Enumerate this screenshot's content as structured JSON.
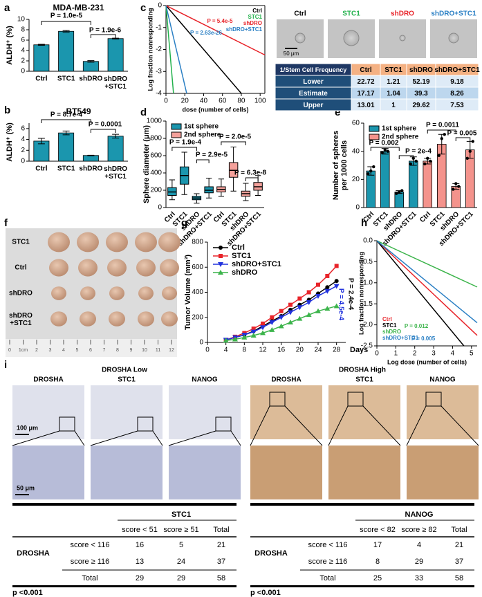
{
  "panel_labels": [
    "a",
    "b",
    "c",
    "d",
    "e",
    "f",
    "g",
    "h",
    "i"
  ],
  "chart_data": [
    {
      "type": "bar",
      "title": "MDA-MB-231",
      "ylabel": "ALDH⁺ (%)",
      "categories": [
        "Ctrl",
        "STC1",
        "shDRO",
        "shDRO\n+STC1"
      ],
      "values": [
        5.1,
        7.7,
        1.9,
        6.3
      ],
      "errors": [
        0.1,
        0.15,
        0.15,
        0.08
      ],
      "color": "#1b96ae",
      "ylim": [
        0,
        10
      ],
      "yticks": [
        0,
        2,
        4,
        6,
        8,
        10
      ],
      "annotations": [
        {
          "text": "P = 1.0e-5",
          "color": "#000000"
        },
        {
          "text": "P = 1.9e-6",
          "color": "#000000"
        }
      ]
    },
    {
      "type": "bar",
      "title": "BT549",
      "ylabel": "ALDH⁺ (%)",
      "categories": [
        "Ctrl",
        "STC1",
        "shDRO",
        "shDRO\n+STC1"
      ],
      "values": [
        3.7,
        5.2,
        1.05,
        4.6
      ],
      "errors": [
        0.5,
        0.35,
        0.05,
        0.35
      ],
      "color": "#1b96ae",
      "ylim": [
        0,
        7
      ],
      "yticks": [
        0,
        2,
        4,
        6
      ],
      "annotations": [
        {
          "text": "P = 8.7e-4",
          "color": "#000000"
        },
        {
          "text": "P = 0.0001",
          "color": "#000000"
        }
      ]
    },
    {
      "type": "line",
      "ylabel": "Log fraction nonresponding",
      "xlabel": "dose (number of cells)",
      "frame": true,
      "xlim": [
        0,
        105
      ],
      "xticks": [
        0,
        20,
        40,
        60,
        80,
        100
      ],
      "ylim": [
        -4,
        0
      ],
      "yticks": [
        0,
        -1,
        -2,
        -3,
        -4
      ],
      "legend": "upper right",
      "series": [
        {
          "name": "Ctrl",
          "color": "#000000",
          "x": [
            0,
            80
          ],
          "values": [
            0,
            -4
          ]
        },
        {
          "name": "STC1",
          "color": "#22b14c",
          "x": [
            0,
            8
          ],
          "values": [
            0,
            -4
          ]
        },
        {
          "name": "shDRO",
          "color": "#e8242a",
          "x": [
            0,
            105
          ],
          "values": [
            0,
            -2.25
          ]
        },
        {
          "name": "shDRO+STC1",
          "color": "#2a7fc4",
          "x": [
            0,
            22
          ],
          "values": [
            0,
            -4
          ]
        }
      ],
      "annotations": [
        {
          "text": "P = 5.4e-5",
          "color": "#e8242a"
        },
        {
          "text": "P = 2.63e-26",
          "color": "#2a7fc4"
        }
      ]
    },
    {
      "type": "box",
      "ylabel": "Sphere diameter (μm)",
      "categories": [
        "Ctrl",
        "STC1",
        "shDRO",
        "shDRO+STC1",
        "Ctrl",
        "STC1",
        "shDRO",
        "shDRO+STC1"
      ],
      "x_label_rotation": 45,
      "ylim": [
        0,
        1000
      ],
      "yticks": [
        0,
        200,
        400,
        600,
        800,
        1000
      ],
      "legend": "upper left",
      "series": [
        {
          "name": "1st sphere",
          "color": "#1b96ae",
          "min": [
            90,
            150,
            50,
            110,
            null,
            null,
            null,
            null
          ],
          "q1": [
            140,
            270,
            90,
            170,
            null,
            null,
            null,
            null
          ],
          "median": [
            180,
            370,
            110,
            200,
            null,
            null,
            null,
            null
          ],
          "q3": [
            230,
            470,
            130,
            240,
            null,
            null,
            null,
            null
          ],
          "max": [
            320,
            640,
            160,
            340,
            null,
            null,
            null,
            null
          ]
        },
        {
          "name": "2nd sphere",
          "color": "#f4a09a",
          "min": [
            null,
            null,
            null,
            null,
            130,
            190,
            80,
            140
          ],
          "q1": [
            null,
            null,
            null,
            null,
            180,
            350,
            130,
            200
          ],
          "median": [
            null,
            null,
            null,
            null,
            210,
            430,
            160,
            240
          ],
          "q3": [
            null,
            null,
            null,
            null,
            240,
            520,
            190,
            290
          ],
          "max": [
            null,
            null,
            null,
            null,
            330,
            700,
            280,
            370
          ]
        }
      ],
      "annotations": [
        {
          "text": "P = 1.9e-4",
          "color": "#000000"
        },
        {
          "text": "P = 2.9e-5",
          "color": "#000000"
        },
        {
          "text": "P = 2.0e-5",
          "color": "#000000"
        },
        {
          "text": "P = 6.3e-8",
          "color": "#000000"
        }
      ]
    },
    {
      "type": "bar",
      "ylabel": [
        "Number of spheres",
        "per 1000 cells"
      ],
      "categories": [
        "Ctrl",
        "STC1",
        "shDRO",
        "shDRO+STC1",
        "Ctrl",
        "STC1",
        "shDRO",
        "shDRO+STC1"
      ],
      "x_label_rotation": 45,
      "ylim": [
        0,
        60
      ],
      "yticks": [
        0,
        20,
        40,
        60
      ],
      "legend": "upper left",
      "series": [
        {
          "name": "1st sphere",
          "color": "#1b96ae",
          "values": [
            26,
            40,
            11,
            33,
            null,
            null,
            null,
            null
          ],
          "errors": [
            3,
            2,
            1,
            3,
            null,
            null,
            null,
            null
          ],
          "points": [
            [
              24,
              26,
              29
            ],
            [
              39,
              41,
              40
            ],
            [
              10,
              11,
              12
            ],
            [
              31,
              35,
              33
            ],
            null,
            null,
            null,
            null
          ]
        },
        {
          "name": "2nd sphere",
          "color": "#f4938c",
          "values": [
            null,
            null,
            null,
            null,
            33,
            45,
            15,
            41
          ],
          "errors": [
            null,
            null,
            null,
            null,
            2,
            7,
            2,
            6
          ],
          "points": [
            null,
            null,
            null,
            null,
            [
              31,
              35,
              33
            ],
            [
              37,
              49,
              52
            ],
            [
              13,
              17,
              15
            ],
            [
              35,
              40,
              47
            ]
          ]
        }
      ],
      "annotations": [
        {
          "text": "P = 0.002",
          "color": "#000000"
        },
        {
          "text": "P = 2e-4",
          "color": "#000000"
        },
        {
          "text": "P = 0.0011",
          "color": "#000000"
        },
        {
          "text": "P = 0.005",
          "color": "#000000"
        }
      ]
    },
    {
      "type": "line",
      "ylabel": "Tumor Volume (mm³)",
      "xlabel": "Days",
      "markers": true,
      "xlim": [
        0,
        30
      ],
      "xticks": [
        0,
        4,
        8,
        12,
        16,
        20,
        24,
        28
      ],
      "ylim": [
        0,
        800
      ],
      "yticks": [
        0,
        200,
        400,
        600,
        800
      ],
      "legend": "upper left",
      "series": [
        {
          "name": "Ctrl",
          "color": "#000000",
          "marker": "circle",
          "x": [
            4,
            6,
            8,
            10,
            12,
            14,
            16,
            18,
            20,
            22,
            24,
            26,
            28
          ],
          "values": [
            20,
            40,
            60,
            90,
            130,
            170,
            210,
            260,
            300,
            340,
            390,
            440,
            490
          ]
        },
        {
          "name": "STC1",
          "color": "#e8242a",
          "marker": "square",
          "x": [
            4,
            6,
            8,
            10,
            12,
            14,
            16,
            18,
            20,
            22,
            24,
            26,
            28
          ],
          "values": [
            20,
            45,
            75,
            110,
            150,
            200,
            250,
            300,
            350,
            400,
            460,
            530,
            610
          ]
        },
        {
          "name": "shDRO+STC1",
          "color": "#2233dd",
          "marker": "triangle-down",
          "x": [
            4,
            6,
            8,
            10,
            12,
            14,
            16,
            18,
            20,
            22,
            24,
            26,
            28
          ],
          "values": [
            20,
            40,
            60,
            85,
            120,
            160,
            200,
            240,
            280,
            320,
            370,
            410,
            450
          ]
        },
        {
          "name": "shDRO",
          "color": "#3cb44b",
          "marker": "triangle-up",
          "x": [
            4,
            6,
            8,
            10,
            12,
            14,
            16,
            18,
            20,
            22,
            24,
            26,
            28
          ],
          "values": [
            15,
            25,
            40,
            55,
            75,
            100,
            130,
            160,
            190,
            220,
            250,
            270,
            290
          ]
        }
      ],
      "annotations": [
        {
          "text": "P = 2.4e-4",
          "color": "#000000"
        },
        {
          "text": "P = 4.5e-4",
          "color": "#2233dd"
        }
      ]
    },
    {
      "type": "line",
      "ylabel": "Log fraction nonresponding",
      "xlabel": "Log dose (number of cells)",
      "xlim": [
        0,
        5.3
      ],
      "xticks": [
        0,
        1,
        2,
        3,
        4,
        5
      ],
      "ylim": [
        -2.5,
        0
      ],
      "yticks": [
        {
          "value": 0,
          "label": "0.0"
        },
        -0.5,
        {
          "value": -1,
          "label": "-1.0"
        },
        -1.5,
        {
          "value": -2,
          "label": "-2.0"
        },
        -2.5
      ],
      "legend": "lower left",
      "series": [
        {
          "name": "Ctrl",
          "color": "#e8242a",
          "x": [
            0,
            5.3
          ],
          "values": [
            0,
            -2.25
          ]
        },
        {
          "name": "STC1",
          "color": "#000000",
          "x": [
            0,
            4.6
          ],
          "values": [
            0,
            -2.5
          ]
        },
        {
          "name": "shDRO",
          "color": "#3cb44b",
          "x": [
            0,
            5.3
          ],
          "values": [
            0,
            -1.1
          ]
        },
        {
          "name": "shDRO+STC1",
          "color": "#2a7fc4",
          "x": [
            0,
            5.3
          ],
          "values": [
            0,
            -1.95
          ]
        }
      ],
      "annotations": [
        {
          "text": "P = 0.012",
          "color": "#3cb44b"
        },
        {
          "text": "P = 0.005",
          "color": "#2a7fc4"
        }
      ]
    }
  ],
  "sphere_images": {
    "labels": [
      "Ctrl",
      "STC1",
      "shDRO",
      "shDRO+STC1"
    ],
    "label_colors": [
      "#000000",
      "#22b14c",
      "#e8242a",
      "#2a7fc4"
    ],
    "scale_bar": "50 μm"
  },
  "frequency_table": {
    "header": [
      "1/Stem Cell Frequency",
      "Ctrl",
      "STC1",
      "shDRO",
      "shDRO+STC1"
    ],
    "rows": [
      [
        "Lower",
        "22.72",
        "1.21",
        "52.19",
        "9.18"
      ],
      [
        "Estimate",
        "17.17",
        "1.04",
        "39.3",
        "8.26"
      ],
      [
        "Upper",
        "13.01",
        "1",
        "29.62",
        "7.53"
      ]
    ]
  },
  "tumor_photo": {
    "row_labels": [
      "STC1",
      "Ctrl",
      "shDRO",
      "shDRO\n+STC1"
    ],
    "ruler_labels": [
      "0",
      "1cm",
      "2",
      "3",
      "4",
      "5",
      "6",
      "7",
      "8",
      "9",
      "10",
      "11",
      "12"
    ]
  },
  "ihc": {
    "groups": [
      {
        "title": "DROSHA Low",
        "stains": [
          "DROSHA",
          "STC1",
          "NANOG"
        ]
      },
      {
        "title": "DROSHA High",
        "stains": [
          "DROSHA",
          "STC1",
          "NANOG"
        ]
      }
    ],
    "scale_bars": [
      "100 μm",
      "50 μm"
    ]
  },
  "contingency_tables": [
    {
      "title": "STC1",
      "row_header": "DROSHA",
      "columns": [
        "score < 51",
        "score ≥ 51",
        "Total"
      ],
      "rows": [
        {
          "label": "score < 116",
          "values": [
            16,
            5,
            21
          ]
        },
        {
          "label": "score ≥ 116",
          "values": [
            13,
            24,
            37
          ]
        },
        {
          "label": "Total",
          "values": [
            29,
            29,
            58
          ]
        }
      ],
      "p_value": "p <0.001"
    },
    {
      "title": "NANOG",
      "row_header": "DROSHA",
      "columns": [
        "score < 82",
        "score ≥ 82",
        "Total"
      ],
      "rows": [
        {
          "label": "score < 116",
          "values": [
            17,
            4,
            21
          ]
        },
        {
          "label": "score ≥ 116",
          "values": [
            8,
            29,
            37
          ]
        },
        {
          "label": "Total",
          "values": [
            25,
            33,
            58
          ]
        }
      ],
      "p_value": "p <0.001"
    }
  ]
}
